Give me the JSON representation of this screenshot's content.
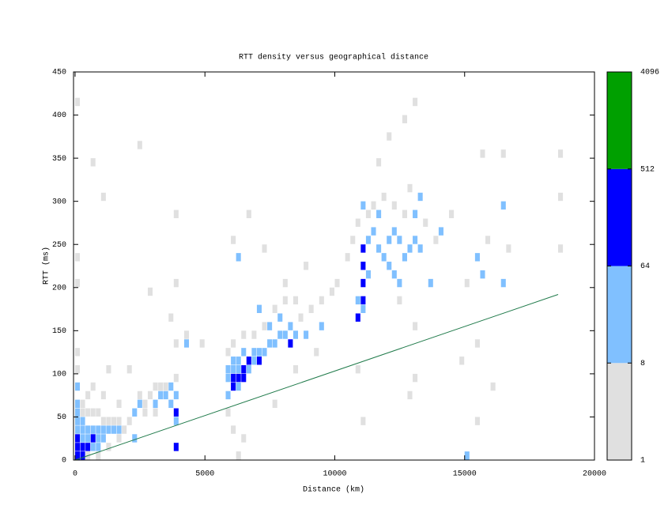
{
  "chart_data": {
    "type": "heatmap",
    "title": "RTT density versus geographical distance",
    "x_label": "Distance (km)",
    "y_label": "RTT (ms)",
    "xlim": [
      -60,
      20000
    ],
    "ylim": [
      0,
      450
    ],
    "xticks": [
      0,
      5000,
      10000,
      15000,
      20000
    ],
    "yticks": [
      0,
      50,
      100,
      150,
      200,
      250,
      300,
      350,
      400,
      450
    ],
    "bin_size": [
      200,
      10
    ],
    "cells": [
      [
        0,
        0,
        300
      ],
      [
        0,
        10,
        200
      ],
      [
        0,
        20,
        150
      ],
      [
        200,
        0,
        90
      ],
      [
        200,
        10,
        80
      ],
      [
        400,
        10,
        70
      ],
      [
        600,
        20,
        70
      ],
      [
        200,
        20,
        40
      ],
      [
        400,
        20,
        30
      ],
      [
        400,
        30,
        25
      ],
      [
        600,
        30,
        30
      ],
      [
        800,
        30,
        20
      ],
      [
        800,
        20,
        15
      ],
      [
        1000,
        30,
        20
      ],
      [
        1200,
        30,
        15
      ],
      [
        1000,
        20,
        10
      ],
      [
        0,
        30,
        40
      ],
      [
        0,
        40,
        30
      ],
      [
        0,
        50,
        20
      ],
      [
        200,
        30,
        30
      ],
      [
        0,
        60,
        12
      ],
      [
        0,
        80,
        10
      ],
      [
        1400,
        30,
        10
      ],
      [
        1600,
        30,
        10
      ],
      [
        200,
        40,
        12
      ],
      [
        600,
        10,
        20
      ],
      [
        800,
        10,
        12
      ],
      [
        200,
        50,
        5
      ],
      [
        400,
        50,
        4
      ],
      [
        600,
        50,
        3
      ],
      [
        800,
        50,
        3
      ],
      [
        1000,
        40,
        5
      ],
      [
        1200,
        40,
        4
      ],
      [
        1400,
        40,
        3
      ],
      [
        1600,
        40,
        3
      ],
      [
        1800,
        30,
        4
      ],
      [
        2000,
        40,
        4
      ],
      [
        0,
        100,
        5
      ],
      [
        0,
        120,
        3
      ],
      [
        0,
        200,
        2
      ],
      [
        0,
        230,
        2
      ],
      [
        200,
        60,
        3
      ],
      [
        400,
        70,
        2
      ],
      [
        600,
        80,
        2
      ],
      [
        1000,
        70,
        2
      ],
      [
        1200,
        100,
        2
      ],
      [
        1600,
        60,
        2
      ],
      [
        400,
        0,
        6
      ],
      [
        800,
        0,
        5
      ],
      [
        1200,
        10,
        4
      ],
      [
        1600,
        20,
        5
      ],
      [
        0,
        410,
        1
      ],
      [
        600,
        340,
        1
      ],
      [
        1000,
        300,
        1
      ],
      [
        2400,
        360,
        1
      ],
      [
        2200,
        50,
        10
      ],
      [
        2400,
        60,
        12
      ],
      [
        3000,
        60,
        10
      ],
      [
        3200,
        70,
        15
      ],
      [
        3600,
        60,
        20
      ],
      [
        3600,
        80,
        20
      ],
      [
        3800,
        70,
        25
      ],
      [
        3400,
        70,
        10
      ],
      [
        2200,
        20,
        10
      ],
      [
        3800,
        40,
        10
      ],
      [
        3800,
        50,
        70
      ],
      [
        3800,
        10,
        65
      ],
      [
        2400,
        70,
        5
      ],
      [
        2600,
        60,
        4
      ],
      [
        2800,
        70,
        4
      ],
      [
        3000,
        80,
        3
      ],
      [
        3200,
        80,
        4
      ],
      [
        3400,
        80,
        3
      ],
      [
        2600,
        50,
        3
      ],
      [
        3000,
        50,
        3
      ],
      [
        3800,
        90,
        3
      ],
      [
        3800,
        130,
        2
      ],
      [
        3800,
        200,
        1
      ],
      [
        3800,
        280,
        1
      ],
      [
        2000,
        100,
        2
      ],
      [
        4200,
        140,
        2
      ],
      [
        2800,
        190,
        1
      ],
      [
        3600,
        160,
        2
      ],
      [
        4200,
        130,
        9
      ],
      [
        6000,
        80,
        150
      ],
      [
        6200,
        90,
        200
      ],
      [
        6400,
        100,
        100
      ],
      [
        6600,
        110,
        80
      ],
      [
        6000,
        90,
        90
      ],
      [
        6400,
        90,
        120
      ],
      [
        7000,
        110,
        70
      ],
      [
        8200,
        130,
        65
      ],
      [
        5800,
        90,
        30
      ],
      [
        5800,
        100,
        20
      ],
      [
        6000,
        100,
        40
      ],
      [
        6200,
        100,
        50
      ],
      [
        6200,
        110,
        30
      ],
      [
        6600,
        100,
        40
      ],
      [
        6800,
        110,
        30
      ],
      [
        6800,
        120,
        20
      ],
      [
        7000,
        120,
        25
      ],
      [
        7200,
        120,
        20
      ],
      [
        7400,
        130,
        20
      ],
      [
        7600,
        130,
        15
      ],
      [
        7800,
        140,
        15
      ],
      [
        8000,
        140,
        12
      ],
      [
        8200,
        150,
        15
      ],
      [
        8400,
        140,
        10
      ],
      [
        7400,
        150,
        10
      ],
      [
        7800,
        160,
        10
      ],
      [
        6400,
        120,
        12
      ],
      [
        6000,
        110,
        15
      ],
      [
        5800,
        70,
        10
      ],
      [
        6200,
        80,
        20
      ],
      [
        8800,
        140,
        10
      ],
      [
        9400,
        150,
        9
      ],
      [
        6200,
        230,
        9
      ],
      [
        7000,
        170,
        9
      ],
      [
        5800,
        120,
        5
      ],
      [
        6000,
        130,
        4
      ],
      [
        6400,
        140,
        3
      ],
      [
        6800,
        140,
        4
      ],
      [
        7200,
        150,
        3
      ],
      [
        7600,
        170,
        3
      ],
      [
        8000,
        180,
        3
      ],
      [
        8400,
        180,
        2
      ],
      [
        8600,
        160,
        3
      ],
      [
        9000,
        170,
        2
      ],
      [
        9400,
        180,
        2
      ],
      [
        9800,
        190,
        2
      ],
      [
        5800,
        50,
        3
      ],
      [
        6000,
        30,
        3
      ],
      [
        6400,
        20,
        2
      ],
      [
        6200,
        0,
        3
      ],
      [
        6000,
        250,
        2
      ],
      [
        6600,
        280,
        1
      ],
      [
        7200,
        240,
        1
      ],
      [
        8000,
        200,
        2
      ],
      [
        8800,
        220,
        1
      ],
      [
        9200,
        120,
        2
      ],
      [
        10000,
        200,
        1
      ],
      [
        4800,
        130,
        1
      ],
      [
        7600,
        60,
        2
      ],
      [
        8400,
        100,
        1
      ],
      [
        10800,
        160,
        100
      ],
      [
        11000,
        180,
        80
      ],
      [
        11000,
        200,
        70
      ],
      [
        11000,
        220,
        90
      ],
      [
        11000,
        240,
        70
      ],
      [
        10800,
        180,
        20
      ],
      [
        11000,
        170,
        30
      ],
      [
        11200,
        210,
        20
      ],
      [
        11200,
        250,
        15
      ],
      [
        11400,
        260,
        20
      ],
      [
        11600,
        240,
        15
      ],
      [
        11800,
        230,
        20
      ],
      [
        12000,
        220,
        15
      ],
      [
        12000,
        250,
        20
      ],
      [
        12200,
        260,
        12
      ],
      [
        12400,
        250,
        15
      ],
      [
        12600,
        230,
        12
      ],
      [
        12800,
        240,
        15
      ],
      [
        13000,
        250,
        20
      ],
      [
        13000,
        280,
        12
      ],
      [
        13200,
        240,
        10
      ],
      [
        12400,
        200,
        10
      ],
      [
        13600,
        200,
        10
      ],
      [
        11000,
        290,
        12
      ],
      [
        11600,
        280,
        10
      ],
      [
        13200,
        300,
        9
      ],
      [
        12200,
        210,
        10
      ],
      [
        15400,
        230,
        10
      ],
      [
        15600,
        210,
        9
      ],
      [
        16400,
        200,
        9
      ],
      [
        16400,
        290,
        9
      ],
      [
        14000,
        260,
        9
      ],
      [
        15000,
        0,
        9
      ],
      [
        10400,
        230,
        4
      ],
      [
        10600,
        250,
        3
      ],
      [
        10800,
        270,
        3
      ],
      [
        11200,
        280,
        3
      ],
      [
        11400,
        290,
        2
      ],
      [
        11800,
        300,
        3
      ],
      [
        12200,
        290,
        4
      ],
      [
        12600,
        280,
        3
      ],
      [
        12800,
        310,
        2
      ],
      [
        13400,
        270,
        3
      ],
      [
        13800,
        250,
        2
      ],
      [
        11600,
        340,
        2
      ],
      [
        12000,
        370,
        1
      ],
      [
        12600,
        390,
        1
      ],
      [
        13000,
        410,
        1
      ],
      [
        12400,
        180,
        3
      ],
      [
        13000,
        150,
        2
      ],
      [
        13000,
        90,
        2
      ],
      [
        12800,
        70,
        1
      ],
      [
        11000,
        40,
        1
      ],
      [
        10800,
        100,
        2
      ],
      [
        14400,
        280,
        2
      ],
      [
        15000,
        200,
        2
      ],
      [
        14800,
        110,
        1
      ],
      [
        15400,
        130,
        2
      ],
      [
        15400,
        40,
        1
      ],
      [
        15600,
        350,
        1
      ],
      [
        16400,
        350,
        1
      ],
      [
        15800,
        250,
        2
      ],
      [
        16600,
        240,
        2
      ],
      [
        18600,
        240,
        1
      ],
      [
        18600,
        350,
        1
      ],
      [
        18600,
        300,
        1
      ],
      [
        16000,
        80,
        1
      ]
    ],
    "reference_line": {
      "color": "#1f7a4a",
      "x": [
        0,
        18600
      ],
      "y": [
        0,
        192
      ]
    },
    "colorbar": {
      "log_base": 2,
      "ticks": [
        1,
        8,
        64,
        512,
        4096
      ],
      "colors": [
        "#e0e0e0",
        "#80c0ff",
        "#0000ff",
        "#00a000"
      ]
    }
  }
}
